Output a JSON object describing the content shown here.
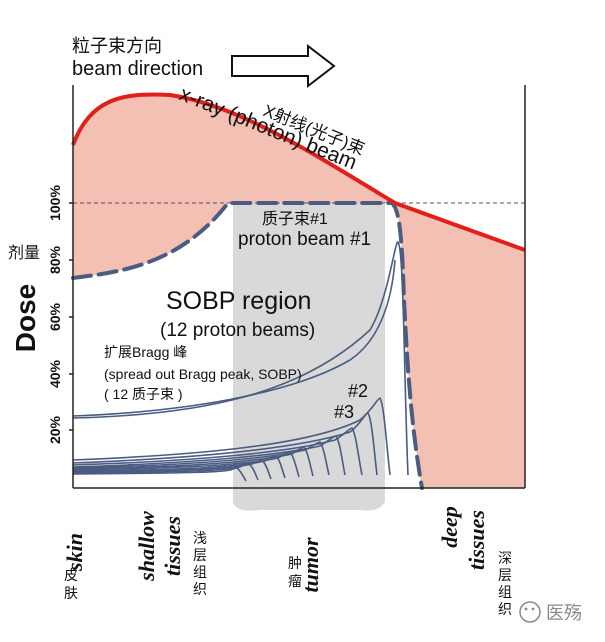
{
  "header": {
    "direction_zh": "粒子束方向",
    "direction_en": "beam direction"
  },
  "y_axis": {
    "label_en": "Dose",
    "label_zh": "剂量",
    "ticks": [
      "20%",
      "40%",
      "60%",
      "80%",
      "100%"
    ]
  },
  "curves": {
    "xray_zh": "X射线(光子)束",
    "xray_en": "x-ray (photon) beam",
    "proton1_zh": "质子束#1",
    "proton1_en": "proton beam #1",
    "beam2": "#2",
    "beam3": "#3"
  },
  "sobp": {
    "title": "SOBP region",
    "subtitle": "(12 proton beams)",
    "desc_zh": "扩展Bragg 峰",
    "desc_en": "(spread out Bragg peak, SOBP)",
    "desc_count": "( 12 质子束 )"
  },
  "regions": {
    "skin_en": "skin",
    "skin_zh": "皮肤",
    "shallow_en_1": "shallow",
    "shallow_en_2": "tissues",
    "shallow_zh": "浅层组织",
    "tumor_en": "tumor",
    "tumor_zh": "肿瘤",
    "deep_en_1": "deep",
    "deep_en_2": "tissues",
    "deep_zh": "深层组织"
  },
  "watermark": {
    "text": "医殇"
  },
  "colors": {
    "xray_line": "#e0201b",
    "xray_fill": "#f5c0b4",
    "proton_line": "#4a5c82",
    "sobp_band": "#d9d9d9",
    "axis": "#222222"
  }
}
